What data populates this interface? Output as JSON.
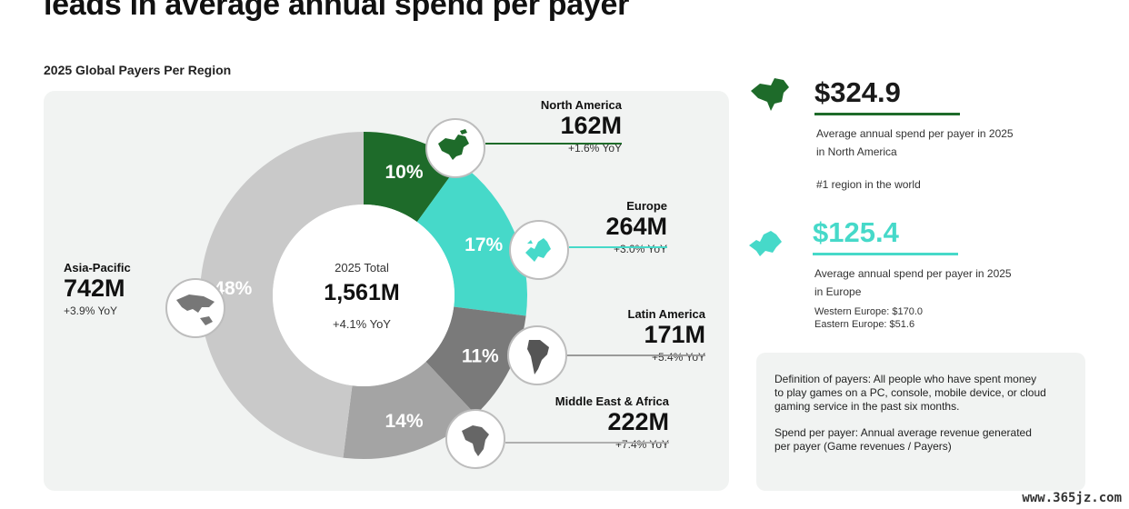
{
  "headline": "leads in average annual spend per payer",
  "chart_data": {
    "type": "pie",
    "title": "2025 Global Payers Per Region",
    "center": {
      "label": "2025 Total",
      "total": "1,561M",
      "yoy": "+4.1% YoY"
    },
    "slices": [
      {
        "name": "North America",
        "share": 10,
        "share_label": "10%",
        "value_m": 162,
        "value_label": "162M",
        "yoy": "+1.6% YoY",
        "color": "#1e6b2a",
        "label_color": "#ffffff"
      },
      {
        "name": "Europe",
        "share": 17,
        "share_label": "17%",
        "value_m": 264,
        "value_label": "264M",
        "yoy": "+3.0% YoY",
        "color": "#46d9c9",
        "label_color": "#ffffff"
      },
      {
        "name": "Latin America",
        "share": 11,
        "share_label": "11%",
        "value_m": 171,
        "value_label": "171M",
        "yoy": "+5.4% YoY",
        "color": "#7a7a7a",
        "label_color": "#ffffff"
      },
      {
        "name": "Middle East & Africa",
        "share": 14,
        "share_label": "14%",
        "value_m": 222,
        "value_label": "222M",
        "yoy": "+7.4% YoY",
        "color": "#a4a4a4",
        "label_color": "#ffffff"
      },
      {
        "name": "Asia-Pacific",
        "share": 48,
        "share_label": "48%",
        "value_m": 742,
        "value_label": "742M",
        "yoy": "+3.9% YoY",
        "color": "#c9c9c9",
        "label_color": "#ffffff"
      }
    ]
  },
  "stats": {
    "north_america": {
      "value": "$324.9",
      "line1": "Average annual spend per payer in 2025",
      "line2": "in North America",
      "rank": "#1 region in the world",
      "color": "#1e6b2a"
    },
    "europe": {
      "value": "$125.4",
      "line1": "Average annual spend per payer in 2025",
      "line2": "in Europe",
      "western": "Western Europe: $170.0",
      "eastern": "Eastern Europe: $51.6",
      "color": "#46d9c9"
    }
  },
  "definitions": {
    "payers": "Definition of payers: All people who have spent money to play games on a PC, console, mobile device, or cloud gaming service in the past six months.",
    "spend": "Spend per payer: Annual average revenue generated per payer (Game revenues / Payers)"
  },
  "watermark": "www.365jz.com",
  "icons": {
    "north_america": "north-america-map-icon",
    "europe": "europe-map-icon",
    "latin_america": "south-america-map-icon",
    "middle_east_africa": "africa-map-icon",
    "asia_pacific": "asia-pacific-map-icon"
  }
}
